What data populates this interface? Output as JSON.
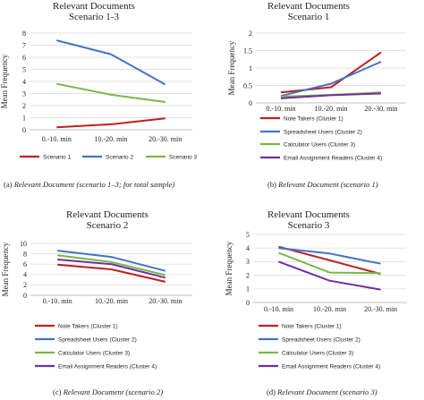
{
  "panels": [
    {
      "caption": {
        "prefix": "(a) ",
        "text": "Relevant Document (scenario 1–3; for total sample)"
      },
      "chart_data": {
        "type": "line",
        "title": [
          "Relevant Documents",
          "Scenario 1-3"
        ],
        "xlabel": "",
        "ylabel": "Mean Frequency",
        "categories": [
          "0.-10. min",
          "10.-20. min",
          "20.-30. min"
        ],
        "ylim": [
          0,
          8
        ],
        "yticks": [
          0,
          1,
          2,
          3,
          4,
          5,
          6,
          7,
          8
        ],
        "grid": true,
        "legend": "bottom",
        "series": [
          {
            "name": "Scenario 1",
            "color": "#c0201f",
            "values": [
              0.2,
              0.45,
              0.95
            ]
          },
          {
            "name": "Scenario 2",
            "color": "#4473c4",
            "values": [
              7.4,
              6.25,
              3.75
            ]
          },
          {
            "name": "Scenario 3",
            "color": "#7ab648",
            "values": [
              3.8,
              2.9,
              2.3
            ]
          }
        ]
      }
    },
    {
      "caption": {
        "prefix": "(b) ",
        "text": "Relevant Document (scenario 1)"
      },
      "chart_data": {
        "type": "line",
        "title": [
          "Relevant Documents",
          "Scenario 1"
        ],
        "xlabel": "",
        "ylabel": "Mean Frequency",
        "categories": [
          "0.-10. min",
          "10.-20. min",
          "20.-30. min"
        ],
        "ylim": [
          0,
          2
        ],
        "yticks": [
          0,
          0.5,
          1,
          1.5,
          2
        ],
        "grid": true,
        "legend": "bottom",
        "series": [
          {
            "name": "Note Takers (Cluster 1)",
            "color": "#c0201f",
            "values": [
              0.3,
              0.45,
              1.45
            ]
          },
          {
            "name": "Spreadsheet Users (Cluster 2)",
            "color": "#4473c4",
            "values": [
              0.2,
              0.55,
              1.18
            ]
          },
          {
            "name": "Calculator Users (Cluster 3)",
            "color": "#7ab648",
            "values": [
              0.18,
              0.23,
              0.3
            ]
          },
          {
            "name": "Email Assignment Readers (Cluster 4)",
            "color": "#7030a0",
            "values": [
              0.13,
              0.22,
              0.27
            ]
          }
        ]
      }
    },
    {
      "caption": {
        "prefix": "(c) ",
        "text": "Relevant Document (scenario 2)"
      },
      "chart_data": {
        "type": "line",
        "title": [
          "Relevant Documents",
          "Scenario 2"
        ],
        "xlabel": "",
        "ylabel": "Mean Frequency",
        "categories": [
          "0.-10. min",
          "10.-20. min",
          "20.-30. min"
        ],
        "ylim": [
          0,
          10
        ],
        "yticks": [
          0,
          2,
          4,
          6,
          8,
          10
        ],
        "grid": true,
        "legend": "bottom",
        "series": [
          {
            "name": "Note Takers (Cluster 1)",
            "color": "#c0201f",
            "values": [
              5.9,
              5.0,
              2.6
            ]
          },
          {
            "name": "Spreadsheet Users (Cluster 2)",
            "color": "#4473c4",
            "values": [
              8.6,
              7.4,
              4.7
            ]
          },
          {
            "name": "Calculator Users (Cluster 3)",
            "color": "#7ab648",
            "values": [
              7.7,
              6.4,
              3.9
            ]
          },
          {
            "name": "Email Assignment Readers (Cluster 4)",
            "color": "#7030a0",
            "values": [
              6.9,
              6.0,
              3.4
            ]
          }
        ]
      }
    },
    {
      "caption": {
        "prefix": "(d) ",
        "text": "Relevant Document (scenario 3)"
      },
      "chart_data": {
        "type": "line",
        "title": [
          "Relevant Documents",
          "Scenario 3"
        ],
        "xlabel": "",
        "ylabel": "Mean Frequency",
        "categories": [
          "0.-10. min",
          "10.-20. min",
          "20.-30. min"
        ],
        "ylim": [
          0,
          5
        ],
        "yticks": [
          0,
          1,
          2,
          3,
          4,
          5
        ],
        "grid": true,
        "legend": "bottom",
        "series": [
          {
            "name": "Note Takers (Cluster 1)",
            "color": "#c0201f",
            "values": [
              4.1,
              3.1,
              2.1
            ]
          },
          {
            "name": "Spreadsheet Users (Cluster 2)",
            "color": "#4473c4",
            "values": [
              4.0,
              3.6,
              2.85
            ]
          },
          {
            "name": "Calculator Users (Cluster 3)",
            "color": "#7ab648",
            "values": [
              3.65,
              2.2,
              2.15
            ]
          },
          {
            "name": "Email Assignment Readers (Cluster 4)",
            "color": "#7030a0",
            "values": [
              3.0,
              1.6,
              0.95
            ]
          }
        ]
      }
    }
  ]
}
